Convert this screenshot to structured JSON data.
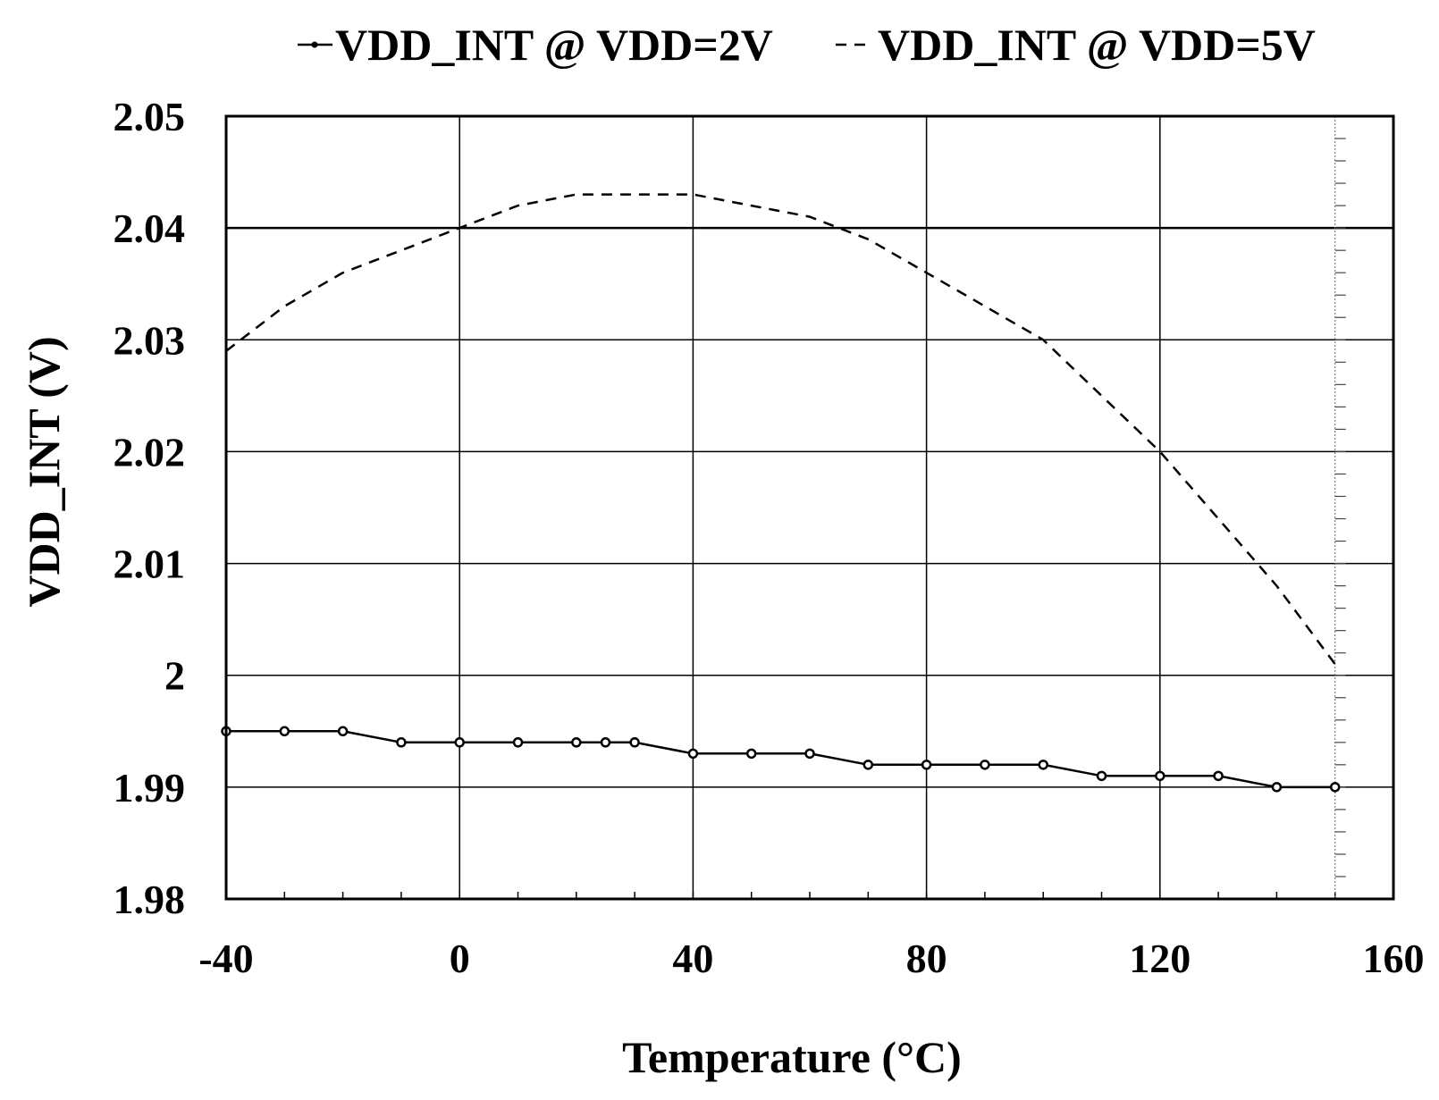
{
  "chart_data": {
    "type": "line",
    "xlabel": "Temperature (°C)",
    "ylabel": "VDD_INT (V)",
    "xlim": [
      -40,
      160
    ],
    "ylim": [
      1.98,
      2.05
    ],
    "x_ticks": [
      -40,
      0,
      40,
      80,
      120,
      160
    ],
    "x_tick_labels": [
      "-40",
      "0",
      "40",
      "80",
      "120",
      "160"
    ],
    "y_ticks": [
      1.98,
      1.99,
      2,
      2.01,
      2.02,
      2.03,
      2.04,
      2.05
    ],
    "y_tick_labels": [
      "1.98",
      "1.99",
      "2",
      "2.01",
      "2.02",
      "2.03",
      "2.04",
      "2.05"
    ],
    "grid": true,
    "legend_position": "top",
    "series": [
      {
        "name": "VDD_INT @ VDD=2V",
        "style": "solid-with-markers",
        "color": "#000000",
        "points": [
          [
            -40,
            1.995
          ],
          [
            -30,
            1.995
          ],
          [
            -20,
            1.995
          ],
          [
            -10,
            1.994
          ],
          [
            0,
            1.994
          ],
          [
            10,
            1.994
          ],
          [
            20,
            1.994
          ],
          [
            25,
            1.994
          ],
          [
            30,
            1.994
          ],
          [
            40,
            1.993
          ],
          [
            50,
            1.993
          ],
          [
            60,
            1.993
          ],
          [
            70,
            1.992
          ],
          [
            80,
            1.992
          ],
          [
            90,
            1.992
          ],
          [
            100,
            1.992
          ],
          [
            110,
            1.991
          ],
          [
            120,
            1.991
          ],
          [
            130,
            1.991
          ],
          [
            140,
            1.99
          ],
          [
            150,
            1.99
          ]
        ]
      },
      {
        "name": "VDD_INT @ VDD=5V",
        "style": "dashed",
        "color": "#000000",
        "points": [
          [
            -40,
            2.029
          ],
          [
            -30,
            2.033
          ],
          [
            -20,
            2.036
          ],
          [
            -10,
            2.038
          ],
          [
            0,
            2.04
          ],
          [
            10,
            2.042
          ],
          [
            20,
            2.043
          ],
          [
            25,
            2.043
          ],
          [
            30,
            2.043
          ],
          [
            40,
            2.043
          ],
          [
            50,
            2.042
          ],
          [
            60,
            2.041
          ],
          [
            70,
            2.039
          ],
          [
            80,
            2.036
          ],
          [
            90,
            2.033
          ],
          [
            100,
            2.03
          ],
          [
            110,
            2.025
          ],
          [
            120,
            2.02
          ],
          [
            130,
            2.014
          ],
          [
            140,
            2.008
          ],
          [
            150,
            2.001
          ]
        ]
      }
    ]
  }
}
